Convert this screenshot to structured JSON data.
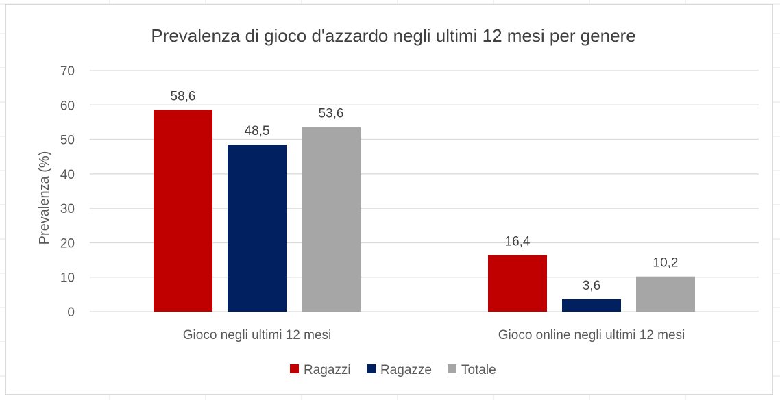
{
  "chart_data": {
    "type": "bar",
    "title": "Prevalenza di gioco d'azzardo negli ultimi 12 mesi per genere",
    "ylabel": "Prevalenza (%)",
    "xlabel": "",
    "ylim": [
      0,
      70
    ],
    "yticks": [
      "0",
      "10",
      "20",
      "30",
      "40",
      "50",
      "60",
      "70"
    ],
    "ytick_values": [
      0,
      10,
      20,
      30,
      40,
      50,
      60,
      70
    ],
    "grid": true,
    "legend_position": "bottom",
    "categories": [
      "Gioco negli ultimi 12 mesi",
      "Gioco online negli ultimi 12 mesi"
    ],
    "series": [
      {
        "name": "Ragazzi",
        "color": "#c00000",
        "values": [
          58.6,
          16.4
        ],
        "labels": [
          "58,6",
          "16,4"
        ]
      },
      {
        "name": "Ragazze",
        "color": "#002060",
        "values": [
          48.5,
          3.6
        ],
        "labels": [
          "48,5",
          "3,6"
        ]
      },
      {
        "name": "Totale",
        "color": "#a6a6a6",
        "values": [
          53.6,
          10.2
        ],
        "labels": [
          "53,6",
          "10,2"
        ]
      }
    ]
  }
}
